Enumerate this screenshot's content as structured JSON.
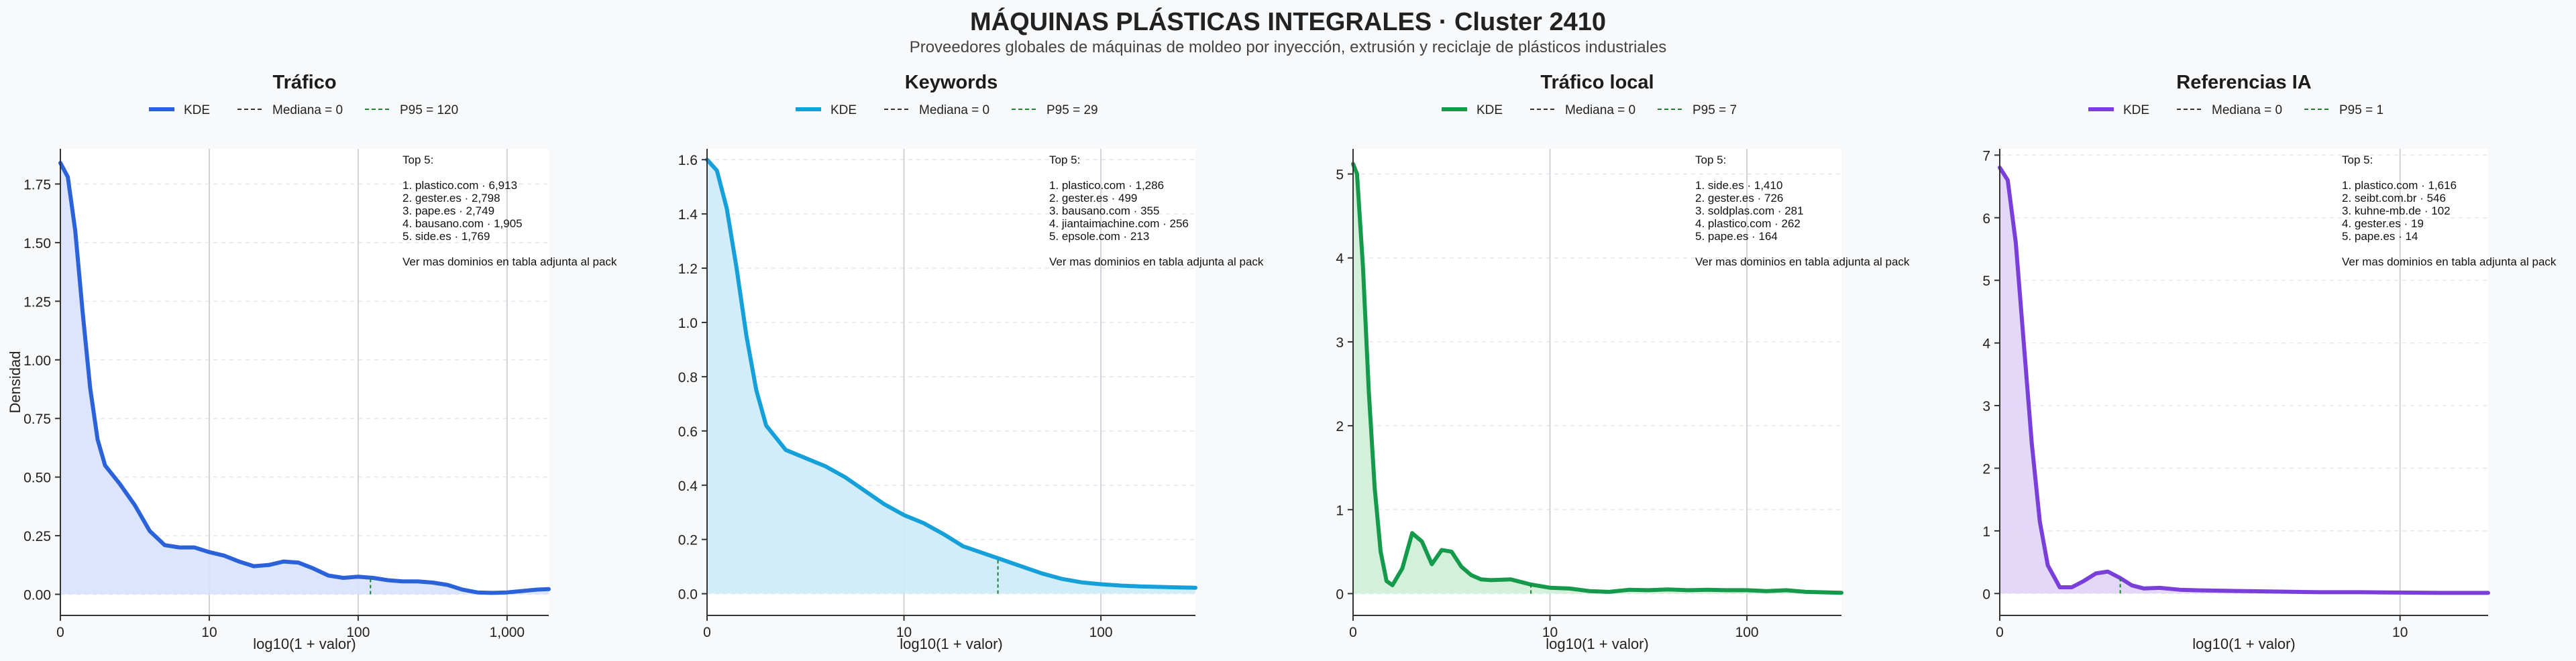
{
  "header": {
    "title": "MÁQUINAS PLÁSTICAS INTEGRALES · Cluster 2410",
    "subtitle": "Proveedores globales de máquinas de moldeo por inyección, extrusión y reciclaje de plásticos industriales"
  },
  "chart_data": [
    {
      "type": "area",
      "title": "Tráfico",
      "color": "#2b62d9",
      "fill": "#d8e2fb",
      "xlabel": "log10(1 + valor)",
      "ylabel": "Densidad",
      "xlim": [
        0,
        3.28
      ],
      "ylim": [
        -0.09,
        1.9
      ],
      "xticks": [
        0,
        1,
        2,
        3
      ],
      "xticklabels": [
        "0",
        "10",
        "100",
        "1,000"
      ],
      "yticks": [
        0,
        0.25,
        0.5,
        0.75,
        1.0,
        1.25,
        1.5,
        1.75
      ],
      "yticklabels": [
        "0.00",
        "0.25",
        "0.50",
        "0.75",
        "1.00",
        "1.25",
        "1.50",
        "1.75"
      ],
      "legend": [
        "KDE",
        "Mediana = 0",
        "P95 = 120"
      ],
      "p95": 120,
      "median": 0,
      "x": [
        0,
        0.05,
        0.1,
        0.15,
        0.2,
        0.25,
        0.3,
        0.4,
        0.5,
        0.6,
        0.7,
        0.8,
        0.9,
        1.0,
        1.1,
        1.2,
        1.3,
        1.4,
        1.5,
        1.6,
        1.7,
        1.8,
        1.9,
        2.0,
        2.1,
        2.2,
        2.3,
        2.4,
        2.5,
        2.6,
        2.7,
        2.8,
        2.9,
        3.0,
        3.1,
        3.2,
        3.28
      ],
      "y": [
        1.84,
        1.78,
        1.55,
        1.2,
        0.88,
        0.66,
        0.55,
        0.47,
        0.38,
        0.27,
        0.21,
        0.2,
        0.2,
        0.18,
        0.165,
        0.14,
        0.12,
        0.125,
        0.14,
        0.135,
        0.11,
        0.08,
        0.07,
        0.075,
        0.07,
        0.06,
        0.055,
        0.055,
        0.05,
        0.04,
        0.02,
        0.008,
        0.006,
        0.008,
        0.014,
        0.02,
        0.022
      ],
      "top5_title": "Top 5:",
      "top5": [
        "1. plastico.com · 6,913",
        "2. gester.es · 2,798",
        "3. pape.es · 2,749",
        "4. bausano.com · 1,905",
        "5. side.es · 1,769"
      ],
      "note": "Ver mas dominios en tabla adjunta al pack"
    },
    {
      "type": "area",
      "title": "Keywords",
      "color": "#16a0d9",
      "fill": "#cdebf9",
      "xlabel": "log10(1 + valor)",
      "ylabel": "",
      "xlim": [
        0,
        2.48
      ],
      "ylim": [
        -0.08,
        1.64
      ],
      "xticks": [
        0,
        1,
        2
      ],
      "xticklabels": [
        "0",
        "10",
        "100"
      ],
      "yticks": [
        0,
        0.2,
        0.4,
        0.6,
        0.8,
        1.0,
        1.2,
        1.4,
        1.6
      ],
      "yticklabels": [
        "0.0",
        "0.2",
        "0.4",
        "0.6",
        "0.8",
        "1.0",
        "1.2",
        "1.4",
        "1.6"
      ],
      "legend": [
        "KDE",
        "Mediana = 0",
        "P95 = 29"
      ],
      "p95": 29,
      "median": 0,
      "x": [
        0,
        0.05,
        0.1,
        0.15,
        0.2,
        0.25,
        0.3,
        0.4,
        0.5,
        0.6,
        0.7,
        0.8,
        0.9,
        1.0,
        1.1,
        1.2,
        1.3,
        1.4,
        1.5,
        1.6,
        1.7,
        1.8,
        1.9,
        2.0,
        2.1,
        2.2,
        2.3,
        2.4,
        2.48
      ],
      "y": [
        1.6,
        1.56,
        1.42,
        1.2,
        0.95,
        0.75,
        0.62,
        0.53,
        0.5,
        0.47,
        0.43,
        0.38,
        0.33,
        0.29,
        0.26,
        0.22,
        0.175,
        0.15,
        0.125,
        0.1,
        0.075,
        0.055,
        0.042,
        0.035,
        0.03,
        0.027,
        0.025,
        0.023,
        0.022
      ],
      "top5_title": "Top 5:",
      "top5": [
        "1. plastico.com · 1,286",
        "2. gester.es · 499",
        "3. bausano.com · 355",
        "4. jiantaimachine.com · 256",
        "5. epsole.com · 213"
      ],
      "note": "Ver mas dominios en tabla adjunta al pack"
    },
    {
      "type": "area",
      "title": "Tráfico local",
      "color": "#15994b",
      "fill": "#cdeed6",
      "xlabel": "log10(1 + valor)",
      "ylabel": "",
      "xlim": [
        0,
        2.48
      ],
      "ylim": [
        -0.26,
        5.3
      ],
      "xticks": [
        0,
        1,
        2
      ],
      "xticklabels": [
        "0",
        "10",
        "100"
      ],
      "yticks": [
        0,
        1,
        2,
        3,
        4,
        5
      ],
      "yticklabels": [
        "0",
        "1",
        "2",
        "3",
        "4",
        "5"
      ],
      "legend": [
        "KDE",
        "Mediana = 0",
        "P95 = 7"
      ],
      "p95": 7,
      "median": 0,
      "x": [
        0,
        0.02,
        0.05,
        0.08,
        0.11,
        0.14,
        0.17,
        0.2,
        0.25,
        0.3,
        0.35,
        0.4,
        0.45,
        0.5,
        0.55,
        0.6,
        0.65,
        0.7,
        0.8,
        0.9,
        1.0,
        1.1,
        1.2,
        1.3,
        1.4,
        1.5,
        1.6,
        1.7,
        1.8,
        1.9,
        2.0,
        2.1,
        2.2,
        2.3,
        2.4,
        2.48
      ],
      "y": [
        5.12,
        5.0,
        3.9,
        2.4,
        1.25,
        0.5,
        0.15,
        0.1,
        0.3,
        0.72,
        0.62,
        0.35,
        0.52,
        0.5,
        0.32,
        0.22,
        0.17,
        0.16,
        0.17,
        0.11,
        0.07,
        0.06,
        0.03,
        0.02,
        0.045,
        0.04,
        0.05,
        0.04,
        0.045,
        0.04,
        0.04,
        0.03,
        0.04,
        0.02,
        0.015,
        0.01
      ],
      "top5_title": "Top 5:",
      "top5": [
        "1. side.es · 1,410",
        "2. gester.es · 726",
        "3. soldplas.com · 281",
        "4. plastico.com · 262",
        "5. pape.es · 164"
      ],
      "note": "Ver mas dominios en tabla adjunta al pack"
    },
    {
      "type": "area",
      "title": "Referencias IA",
      "color": "#7a3fdb",
      "fill": "#e1d4f8",
      "xlabel": "log10(1 + valor)",
      "ylabel": "",
      "xlim": [
        0,
        1.22
      ],
      "ylim": [
        -0.35,
        7.1
      ],
      "xticks": [
        0,
        1
      ],
      "xticklabels": [
        "0",
        "10"
      ],
      "yticks": [
        0,
        1,
        2,
        3,
        4,
        5,
        6,
        7
      ],
      "yticklabels": [
        "0",
        "1",
        "2",
        "3",
        "4",
        "5",
        "6",
        "7"
      ],
      "legend": [
        "KDE",
        "Mediana = 0",
        "P95 = 1"
      ],
      "p95": 1,
      "median": 0,
      "x": [
        0,
        0.02,
        0.04,
        0.06,
        0.08,
        0.1,
        0.12,
        0.15,
        0.18,
        0.21,
        0.24,
        0.27,
        0.3,
        0.33,
        0.36,
        0.4,
        0.45,
        0.5,
        0.6,
        0.7,
        0.8,
        0.9,
        1.0,
        1.1,
        1.22
      ],
      "y": [
        6.8,
        6.6,
        5.6,
        4.0,
        2.4,
        1.15,
        0.45,
        0.1,
        0.1,
        0.2,
        0.32,
        0.35,
        0.25,
        0.13,
        0.08,
        0.09,
        0.06,
        0.05,
        0.04,
        0.03,
        0.02,
        0.02,
        0.015,
        0.01,
        0.01
      ],
      "top5_title": "Top 5:",
      "top5": [
        "1. plastico.com · 1,616",
        "2. seibt.com.br · 546",
        "3. kuhne-mb.de · 102",
        "4. gester.es · 19",
        "5. pape.es · 14"
      ],
      "note": "Ver mas dominios en tabla adjunta al pack"
    }
  ]
}
